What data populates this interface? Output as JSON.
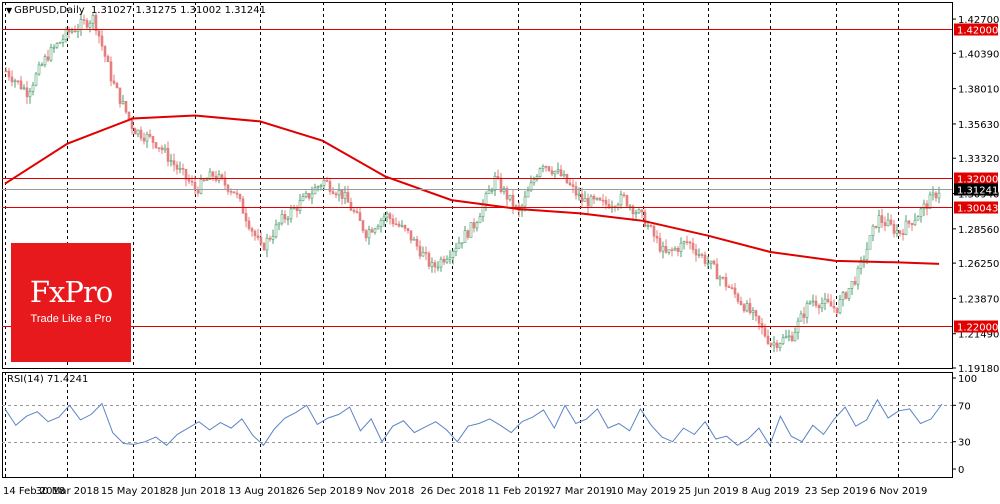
{
  "header": {
    "symbol": "GBPUSD,Daily",
    "ohlc": "1.31027 1.31275 1.31002 1.31241"
  },
  "rsi_header": "RSI(14) 71.4241",
  "logo": {
    "name": "FxPro",
    "tagline": "Trade Like a Pro"
  },
  "colors": {
    "bull": "#4e9e6f",
    "bear": "#e57e7e",
    "ma": "#e00000",
    "level_line": "#e00000",
    "rsi": "#5b83c6",
    "grid": "#000000",
    "label_red": "#e00000",
    "label_black": "#000000"
  },
  "chart_data": [
    {
      "type": "candlestick",
      "title": "GBPUSD,Daily",
      "ylim": [
        1.1918,
        1.4385
      ],
      "y_ticks": [
        "1.42700",
        "1.40390",
        "1.38010",
        "1.35630",
        "1.33320",
        "1.30940",
        "1.28560",
        "1.26250",
        "1.23870",
        "1.21490",
        "1.19180"
      ],
      "x_ticks": [
        "14 Feb 2018",
        "30 Mar 2018",
        "15 May 2018",
        "28 Jun 2018",
        "13 Aug 2018",
        "26 Sep 2018",
        "9 Nov 2018",
        "26 Dec 2018",
        "11 Feb 2019",
        "27 Mar 2019",
        "10 May 2019",
        "25 Jun 2019",
        "8 Aug 2019",
        "23 Sep 2019",
        "6 Nov 2019"
      ],
      "horizontal_levels": [
        {
          "label": "1.42000",
          "value": 1.42,
          "style": "red"
        },
        {
          "label": "1.32000",
          "value": 1.32,
          "style": "red"
        },
        {
          "label": "1.31241",
          "value": 1.31241,
          "style": "black"
        },
        {
          "label": "1.30043",
          "value": 1.30043,
          "style": "red"
        },
        {
          "label": "1.22000",
          "value": 1.22,
          "style": "red"
        }
      ],
      "close_path": [
        [
          "14 Feb 2018",
          1.392
        ],
        [
          "1 Mar 2018",
          1.378
        ],
        [
          "15 Mar 2018",
          1.402
        ],
        [
          "30 Mar 2018",
          1.418
        ],
        [
          "17 Apr 2018",
          1.428
        ],
        [
          "30 Apr 2018",
          1.385
        ],
        [
          "15 May 2018",
          1.353
        ],
        [
          "1 Jun 2018",
          1.343
        ],
        [
          "15 Jun 2018",
          1.326
        ],
        [
          "28 Jun 2018",
          1.312
        ],
        [
          "10 Jul 2018",
          1.322
        ],
        [
          "25 Jul 2018",
          1.311
        ],
        [
          "13 Aug 2018",
          1.272
        ],
        [
          "28 Aug 2018",
          1.292
        ],
        [
          "10 Sep 2018",
          1.303
        ],
        [
          "26 Sep 2018",
          1.318
        ],
        [
          "10 Oct 2018",
          1.308
        ],
        [
          "26 Oct 2018",
          1.283
        ],
        [
          "9 Nov 2018",
          1.295
        ],
        [
          "25 Nov 2018",
          1.282
        ],
        [
          "12 Dec 2018",
          1.259
        ],
        [
          "26 Dec 2018",
          1.272
        ],
        [
          "10 Jan 2019",
          1.288
        ],
        [
          "25 Jan 2019",
          1.319
        ],
        [
          "11 Feb 2019",
          1.296
        ],
        [
          "27 Feb 2019",
          1.331
        ],
        [
          "13 Mar 2019",
          1.321
        ],
        [
          "27 Mar 2019",
          1.305
        ],
        [
          "12 Apr 2019",
          1.302
        ],
        [
          "26 Apr 2019",
          1.306
        ],
        [
          "10 May 2019",
          1.292
        ],
        [
          "25 May 2019",
          1.268
        ],
        [
          "10 Jun 2019",
          1.277
        ],
        [
          "25 Jun 2019",
          1.262
        ],
        [
          "10 Jul 2019",
          1.245
        ],
        [
          "25 Jul 2019",
          1.228
        ],
        [
          "8 Aug 2019",
          1.208
        ],
        [
          "22 Aug 2019",
          1.213
        ],
        [
          "5 Sep 2019",
          1.238
        ],
        [
          "23 Sep 2019",
          1.232
        ],
        [
          "8 Oct 2019",
          1.255
        ],
        [
          "22 Oct 2019",
          1.293
        ],
        [
          "6 Nov 2019",
          1.283
        ],
        [
          "20 Nov 2019",
          1.296
        ],
        [
          "5 Dec 2019",
          1.31241
        ]
      ],
      "moving_average": [
        [
          "14 Feb 2018",
          1.316
        ],
        [
          "30 Mar 2018",
          1.343
        ],
        [
          "15 May 2018",
          1.36
        ],
        [
          "28 Jun 2018",
          1.362
        ],
        [
          "13 Aug 2018",
          1.358
        ],
        [
          "26 Sep 2018",
          1.345
        ],
        [
          "9 Nov 2018",
          1.321
        ],
        [
          "26 Dec 2018",
          1.305
        ],
        [
          "11 Feb 2019",
          1.299
        ],
        [
          "27 Mar 2019",
          1.296
        ],
        [
          "10 May 2019",
          1.291
        ],
        [
          "25 Jun 2019",
          1.281
        ],
        [
          "8 Aug 2019",
          1.27
        ],
        [
          "23 Sep 2019",
          1.264
        ],
        [
          "6 Nov 2019",
          1.263
        ],
        [
          "5 Dec 2019",
          1.262
        ]
      ]
    },
    {
      "type": "line",
      "title": "RSI(14) 71.4241",
      "ylim": [
        0,
        100
      ],
      "y_ticks": [
        "100",
        "70",
        "30",
        "0"
      ],
      "reference_levels": [
        70,
        30
      ],
      "series": [
        {
          "values": [
            66,
            48,
            58,
            63,
            52,
            57,
            70,
            54,
            60,
            72,
            40,
            28,
            27,
            30,
            35,
            26,
            38,
            45,
            52,
            43,
            51,
            45,
            55,
            37,
            26,
            44,
            56,
            62,
            70,
            49,
            56,
            60,
            68,
            42,
            55,
            30,
            47,
            53,
            40,
            46,
            52,
            43,
            30,
            47,
            50,
            55,
            48,
            40,
            52,
            57,
            65,
            45,
            70,
            50,
            55,
            66,
            45,
            50,
            42,
            66,
            48,
            35,
            30,
            45,
            38,
            52,
            33,
            36,
            26,
            33,
            45,
            26,
            58,
            36,
            30,
            48,
            38,
            55,
            68,
            47,
            54,
            76,
            56,
            64,
            66,
            50,
            55,
            71.4241
          ]
        }
      ]
    }
  ]
}
